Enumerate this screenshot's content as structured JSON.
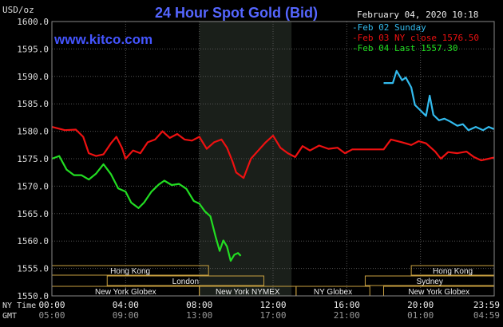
{
  "chart_data": {
    "type": "line",
    "title": "24 Hour Spot Gold (Bid)",
    "ylabel": "USD/oz",
    "ylim": [
      1550,
      1600
    ],
    "yticks": [
      "1600.0",
      "1595.0",
      "1590.0",
      "1585.0",
      "1580.0",
      "1575.0",
      "1570.0",
      "1565.0",
      "1560.0",
      "1555.0",
      "1550.0"
    ],
    "xlim": [
      0,
      24
    ],
    "xaxis_rows": [
      {
        "label": "NY Time",
        "ticks": [
          "00:00",
          "04:00",
          "08:00",
          "12:00",
          "16:00",
          "20:00",
          "23:59"
        ]
      },
      {
        "label": "GMT",
        "ticks": [
          "05:00",
          "09:00",
          "13:00",
          "17:00",
          "21:00",
          "01:00",
          "04:59"
        ]
      }
    ],
    "timestamp": "February 04, 2020 10:18",
    "watermark": "www.kitco.com",
    "legend_position": "top-right",
    "highlight_range": [
      8,
      13
    ],
    "sessions": [
      {
        "name": "Hong Kong",
        "start": 0,
        "end": 8.5,
        "row": 1
      },
      {
        "name": "Hong Kong",
        "start": 19.5,
        "end": 24,
        "row": 1
      },
      {
        "name": "London",
        "start": 3,
        "end": 11.5,
        "row": 2
      },
      {
        "name": "Sydney",
        "start": 17,
        "end": 24,
        "row": 2
      },
      {
        "name": "New York Globex",
        "start": 0,
        "end": 8,
        "row": 3
      },
      {
        "name": "New York NYMEX",
        "start": 8,
        "end": 13.25,
        "row": 3
      },
      {
        "name": "NY Globex",
        "start": 13.25,
        "end": 17.25,
        "row": 3
      },
      {
        "name": "New York Globex",
        "start": 18,
        "end": 24,
        "row": 3
      }
    ],
    "series": [
      {
        "name": "Feb 02 Sunday",
        "color": "#33bbee",
        "points": [
          [
            18,
            1588.8
          ],
          [
            18.5,
            1588.8
          ],
          [
            18.7,
            1591
          ],
          [
            19,
            1589.3
          ],
          [
            19.2,
            1589.8
          ],
          [
            19.5,
            1588
          ],
          [
            19.7,
            1584.8
          ],
          [
            20,
            1583.8
          ],
          [
            20.3,
            1582.8
          ],
          [
            20.5,
            1586.5
          ],
          [
            20.7,
            1583
          ],
          [
            21,
            1582
          ],
          [
            21.3,
            1582.3
          ],
          [
            21.6,
            1581.8
          ],
          [
            22,
            1581
          ],
          [
            22.3,
            1581.3
          ],
          [
            22.6,
            1580.2
          ],
          [
            23,
            1580.8
          ],
          [
            23.4,
            1580.2
          ],
          [
            23.7,
            1580.8
          ],
          [
            23.98,
            1580.4
          ]
        ]
      },
      {
        "name": "Feb 03 NY close 1576.50",
        "color": "#ee1111",
        "points": [
          [
            0,
            1580.8
          ],
          [
            0.7,
            1580.2
          ],
          [
            1.3,
            1580.3
          ],
          [
            1.7,
            1579
          ],
          [
            2,
            1576
          ],
          [
            2.4,
            1575.5
          ],
          [
            2.8,
            1575.8
          ],
          [
            3.2,
            1577.8
          ],
          [
            3.5,
            1579
          ],
          [
            3.8,
            1577
          ],
          [
            4,
            1575
          ],
          [
            4.4,
            1576.5
          ],
          [
            4.8,
            1576
          ],
          [
            5.2,
            1578
          ],
          [
            5.6,
            1578.5
          ],
          [
            6,
            1580
          ],
          [
            6.4,
            1578.8
          ],
          [
            6.8,
            1579.5
          ],
          [
            7.2,
            1578.5
          ],
          [
            7.6,
            1578.3
          ],
          [
            8,
            1579
          ],
          [
            8.4,
            1576.8
          ],
          [
            8.8,
            1578
          ],
          [
            9.2,
            1578.5
          ],
          [
            9.5,
            1577
          ],
          [
            9.8,
            1574.5
          ],
          [
            10,
            1572.5
          ],
          [
            10.4,
            1571.5
          ],
          [
            10.8,
            1575
          ],
          [
            11.2,
            1576.5
          ],
          [
            11.6,
            1578
          ],
          [
            12,
            1579.2
          ],
          [
            12.4,
            1577
          ],
          [
            12.8,
            1576
          ],
          [
            13.2,
            1575.3
          ],
          [
            13.6,
            1577.3
          ],
          [
            14,
            1576.5
          ],
          [
            14.5,
            1577.4
          ],
          [
            15,
            1576.8
          ],
          [
            15.5,
            1577
          ],
          [
            15.9,
            1576
          ],
          [
            16.3,
            1576.7
          ],
          [
            17,
            1576.7
          ],
          [
            18,
            1576.7
          ],
          [
            18.4,
            1578.5
          ],
          [
            19,
            1578
          ],
          [
            19.5,
            1577.5
          ],
          [
            19.9,
            1578.2
          ],
          [
            20.3,
            1577.8
          ],
          [
            20.8,
            1576.3
          ],
          [
            21.1,
            1575
          ],
          [
            21.5,
            1576.2
          ],
          [
            22,
            1576
          ],
          [
            22.5,
            1576.3
          ],
          [
            22.9,
            1575.3
          ],
          [
            23.3,
            1574.7
          ],
          [
            23.7,
            1575
          ],
          [
            23.98,
            1575.2
          ]
        ]
      },
      {
        "name": "Feb 04 Last 1557.30",
        "color": "#22dd22",
        "points": [
          [
            0,
            1575
          ],
          [
            0.4,
            1575.5
          ],
          [
            0.8,
            1573
          ],
          [
            1.2,
            1572
          ],
          [
            1.6,
            1572
          ],
          [
            2,
            1571.2
          ],
          [
            2.4,
            1572.3
          ],
          [
            2.8,
            1574
          ],
          [
            3.2,
            1572.2
          ],
          [
            3.6,
            1569.6
          ],
          [
            4,
            1569
          ],
          [
            4.3,
            1567
          ],
          [
            4.7,
            1566
          ],
          [
            5,
            1567
          ],
          [
            5.4,
            1569
          ],
          [
            5.8,
            1570.3
          ],
          [
            6.1,
            1571
          ],
          [
            6.5,
            1570.2
          ],
          [
            6.9,
            1570.4
          ],
          [
            7.3,
            1569.5
          ],
          [
            7.7,
            1567.3
          ],
          [
            8,
            1566.8
          ],
          [
            8.3,
            1565.4
          ],
          [
            8.6,
            1564.5
          ],
          [
            8.9,
            1560.6
          ],
          [
            9.1,
            1558.2
          ],
          [
            9.3,
            1560.1
          ],
          [
            9.5,
            1559
          ],
          [
            9.7,
            1556.4
          ],
          [
            9.9,
            1557.5
          ],
          [
            10.1,
            1557.8
          ],
          [
            10.25,
            1557.3
          ]
        ]
      }
    ]
  }
}
